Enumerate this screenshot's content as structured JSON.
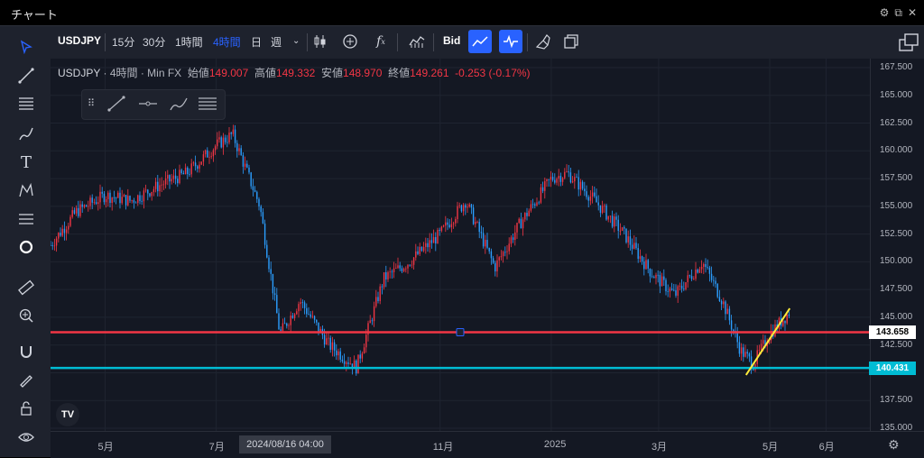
{
  "window": {
    "title": "チャート",
    "controls": [
      "⚙",
      "⧉",
      "✕"
    ]
  },
  "toolbar": {
    "symbol": "USDJPY",
    "intervals": [
      "15分",
      "30分",
      "1時間",
      "4時間",
      "日",
      "週"
    ],
    "active_interval": "4時間",
    "bid_label": "Bid"
  },
  "legend": {
    "symbol": "USDJPY",
    "interval": "4時間",
    "source": "Min FX",
    "open_label": "始値",
    "open": "149.007",
    "high_label": "高値",
    "high": "149.332",
    "low_label": "安値",
    "low": "148.970",
    "close_label": "終値",
    "close": "149.261",
    "change": "-0.253 (-0.17%)"
  },
  "logo": "TV",
  "price_scale": {
    "ticks": [
      "167.500",
      "165.000",
      "162.500",
      "160.000",
      "157.500",
      "155.000",
      "152.500",
      "150.000",
      "147.500",
      "145.000",
      "142.500",
      "140.000",
      "137.500",
      "135.000"
    ],
    "tags": [
      {
        "label": "143.658",
        "color": "#ffffff",
        "text_color": "#000000"
      },
      {
        "label": "140.431",
        "color": "#00bcd4",
        "text_color": "#ffffff"
      }
    ]
  },
  "time_scale": {
    "ticks": [
      {
        "label": "5月",
        "date": "2024-05"
      },
      {
        "label": "7月",
        "date": "2024-07"
      },
      {
        "label": "11月",
        "date": "2024-11"
      },
      {
        "label": "2025",
        "date": "2025-01"
      },
      {
        "label": "3月",
        "date": "2025-03"
      },
      {
        "label": "5月",
        "date": "2025-05"
      },
      {
        "label": "6月",
        "date": "2025-06"
      }
    ],
    "crosshair_label": "2024/08/16  04:00"
  },
  "horizontal_lines": [
    {
      "price": 143.658,
      "color": "#f23645"
    },
    {
      "price": 140.431,
      "color": "#00bcd4"
    }
  ],
  "colors": {
    "up": "#f23645",
    "down": "#2b9eff",
    "accent": "#2962ff",
    "trendline": "#ffeb3b"
  },
  "chart_data": {
    "type": "line",
    "x": [
      "2024-04-01",
      "2024-04-15",
      "2024-05-01",
      "2024-05-15",
      "2024-06-01",
      "2024-06-15",
      "2024-07-01",
      "2024-07-10",
      "2024-07-25",
      "2024-08-05",
      "2024-08-16",
      "2024-09-01",
      "2024-09-16",
      "2024-10-01",
      "2024-10-15",
      "2024-11-01",
      "2024-11-15",
      "2024-12-01",
      "2024-12-15",
      "2025-01-01",
      "2025-01-10",
      "2025-01-25",
      "2025-02-10",
      "2025-02-25",
      "2025-03-10",
      "2025-03-25",
      "2025-04-05",
      "2025-04-15",
      "2025-04-22",
      "2025-05-01",
      "2025-05-12"
    ],
    "y": [
      151.5,
      154.5,
      156.0,
      155.5,
      157.0,
      158.0,
      160.5,
      161.5,
      155.0,
      143.5,
      146.5,
      142.5,
      140.5,
      148.5,
      150.0,
      152.5,
      155.5,
      149.5,
      153.5,
      157.5,
      158.0,
      155.5,
      152.5,
      149.0,
      147.0,
      150.0,
      146.5,
      142.0,
      140.8,
      143.5,
      145.5
    ],
    "ylim": [
      135.0,
      167.5
    ],
    "lines": [
      {
        "price": 143.658
      },
      {
        "price": 140.431
      }
    ]
  }
}
